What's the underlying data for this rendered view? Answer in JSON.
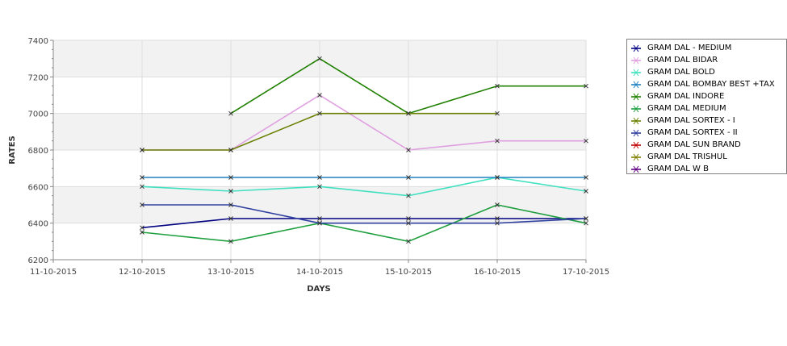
{
  "chart_data": {
    "type": "line",
    "xlabel": "DAYS",
    "ylabel": "RATES",
    "x_ticks": [
      "11-10-2015",
      "12-10-2015",
      "13-10-2015",
      "14-10-2015",
      "15-10-2015",
      "16-10-2015",
      "17-10-2015"
    ],
    "y_ticks": [
      "6200",
      "6400",
      "6600",
      "6800",
      "7000",
      "7200",
      "7400"
    ],
    "ylim": [
      6200,
      7400
    ],
    "grid": true,
    "legend_position": "right",
    "series": [
      {
        "name": "GRAM DAL - MEDIUM",
        "color": "#000080",
        "values": [
          null,
          6375,
          6425,
          6425,
          6425,
          6425,
          6425
        ]
      },
      {
        "name": "GRAM DAL BIDAR",
        "color": "#e0a0e0",
        "values": [
          null,
          6800,
          6800,
          7100,
          6800,
          6850,
          6850
        ]
      },
      {
        "name": "GRAM DAL BOLD",
        "color": "#40e0c0",
        "values": [
          null,
          6600,
          6575,
          6600,
          6550,
          6650,
          6575
        ]
      },
      {
        "name": "GRAM DAL BOMBAY BEST +TAX",
        "color": "#2080c0",
        "values": [
          null,
          6650,
          6650,
          6650,
          6650,
          6650,
          6650
        ]
      },
      {
        "name": "GRAM DAL INDORE",
        "color": "#208000",
        "values": [
          null,
          null,
          7000,
          7300,
          7000,
          7150,
          7150
        ]
      },
      {
        "name": "GRAM DAL MEDIUM",
        "color": "#20a040",
        "values": [
          null,
          6350,
          6300,
          6400,
          6300,
          6500,
          6400
        ]
      },
      {
        "name": "GRAM DAL SORTEX  - I",
        "color": "#6a8000",
        "values": [
          null,
          6800,
          6800,
          7000,
          7000,
          7000,
          null
        ]
      },
      {
        "name": "GRAM DAL SORTEX - II",
        "color": "#3040a0",
        "values": [
          null,
          6500,
          6500,
          6400,
          6400,
          6400,
          6425
        ]
      },
      {
        "name": "GRAM DAL SUN BRAND",
        "color": "#c00000",
        "values": []
      },
      {
        "name": "GRAM DAL TRISHUL",
        "color": "#808000",
        "values": []
      },
      {
        "name": "GRAM DAL W B",
        "color": "#600080",
        "values": []
      }
    ]
  }
}
